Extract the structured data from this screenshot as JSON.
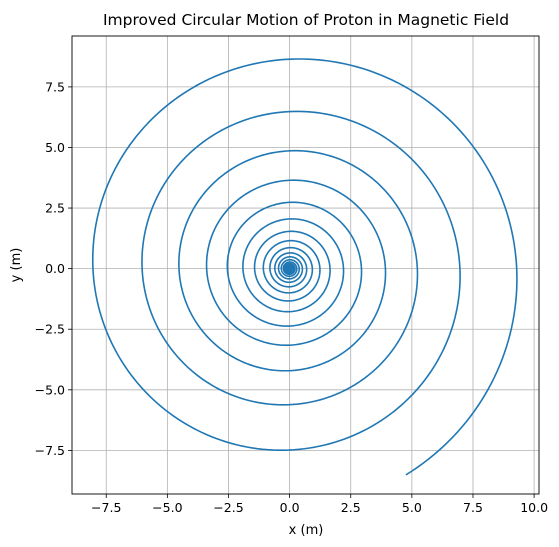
{
  "chart_data": {
    "type": "line",
    "title": "Improved Circular Motion of Proton in Magnetic Field",
    "xlabel": "x (m)",
    "ylabel": "y (m)",
    "xlim": [
      -8.9,
      10.2
    ],
    "ylim": [
      -9.3,
      9.6
    ],
    "xticks": [
      -7.5,
      -5.0,
      -2.5,
      0.0,
      2.5,
      5.0,
      7.5,
      10.0
    ],
    "xtick_labels": [
      "−7.5",
      "−5.0",
      "−2.5",
      "0.0",
      "2.5",
      "5.0",
      "7.5",
      "10.0"
    ],
    "yticks": [
      -7.5,
      -5.0,
      -2.5,
      0.0,
      2.5,
      5.0,
      7.5
    ],
    "ytick_labels": [
      "−7.5",
      "−5.0",
      "−2.5",
      "0.0",
      "2.5",
      "5.0",
      "7.5"
    ],
    "grid": true,
    "series": [
      {
        "color": "#1f77b4",
        "shape": "spiral",
        "center": [
          0.0,
          0.0
        ],
        "start_point": [
          4.75,
          -8.5
        ],
        "start_angle_deg": -60.8,
        "start_radius": 9.75,
        "decay_per_turn": 0.75,
        "direction": "counterclockwise",
        "turns": 30
      }
    ]
  }
}
